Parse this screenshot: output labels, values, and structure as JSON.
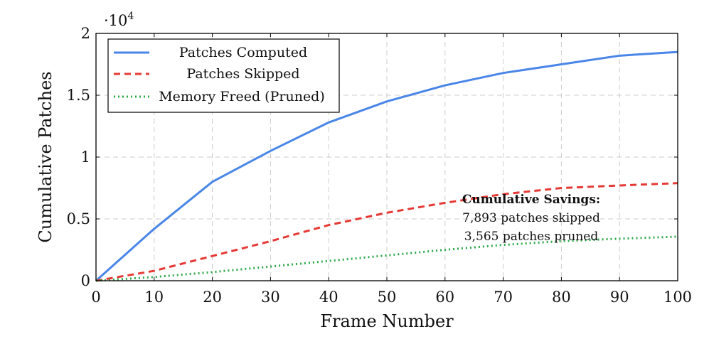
{
  "chart_data": {
    "type": "line",
    "xlabel": "Frame Number",
    "ylabel": "Cumulative Patches",
    "y_exponent_label": "·10",
    "y_exponent_power": "4",
    "xlim": [
      0,
      100
    ],
    "ylim": [
      0,
      20000
    ],
    "x_ticks": [
      0,
      10,
      20,
      30,
      40,
      50,
      60,
      70,
      80,
      90,
      100
    ],
    "x_tick_labels": [
      "0",
      "10",
      "20",
      "30",
      "40",
      "50",
      "60",
      "70",
      "80",
      "90",
      "100"
    ],
    "y_ticks": [
      0,
      5000,
      10000,
      15000,
      20000
    ],
    "y_tick_labels": [
      "0",
      "0.5",
      "1",
      "1.5",
      "2"
    ],
    "grid": true,
    "legend_position": "top-left",
    "series": [
      {
        "name": "Patches Computed",
        "color": "#4a86e8",
        "style": "solid",
        "x": [
          0,
          10,
          20,
          30,
          40,
          50,
          60,
          70,
          80,
          90,
          100
        ],
        "y": [
          0,
          4200,
          8000,
          10500,
          12800,
          14500,
          15800,
          16800,
          17500,
          18200,
          18500
        ]
      },
      {
        "name": "Patches Skipped",
        "color": "#e53935",
        "style": "dashed",
        "x": [
          0,
          10,
          20,
          30,
          40,
          50,
          60,
          70,
          80,
          90,
          100
        ],
        "y": [
          0,
          800,
          2000,
          3200,
          4500,
          5500,
          6300,
          7000,
          7500,
          7700,
          7893
        ]
      },
      {
        "name": "Memory Freed (Pruned)",
        "color": "#2ea84a",
        "style": "dotted",
        "x": [
          0,
          10,
          20,
          30,
          40,
          50,
          60,
          70,
          80,
          90,
          100
        ],
        "y": [
          0,
          300,
          700,
          1150,
          1600,
          2050,
          2500,
          2900,
          3200,
          3400,
          3565
        ]
      }
    ],
    "annotation": {
      "title": "Cumulative Savings:",
      "lines": [
        "7,893 patches skipped",
        "3,565 patches pruned"
      ]
    }
  }
}
